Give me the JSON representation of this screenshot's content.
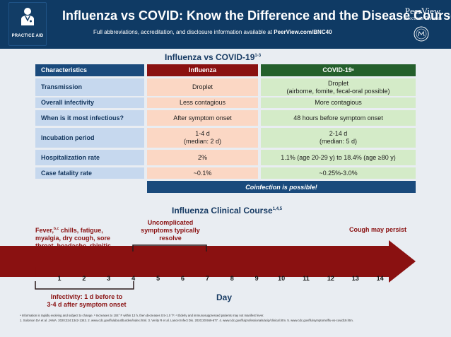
{
  "header": {
    "badge_text": "PRACTICE AID",
    "title": "Influenza vs COVID: Know the Difference and the Disease Course",
    "subtitle_prefix": "Full abbreviations, accreditation, and disclosure information available at ",
    "subtitle_link": "PeerView.com/BNC40",
    "brand_name": "PeerView",
    "brand_sub": "Infectious Diseases",
    "header_color": "#0f3a64"
  },
  "table": {
    "title": "Influenza vs COVID-19",
    "title_refs": "1-3",
    "headers": {
      "characteristics": "Characteristics",
      "influenza": "Influenza",
      "covid": "COVID-19",
      "covid_note": "a"
    },
    "rows": [
      {
        "label": "Transmission",
        "influenza": "Droplet",
        "covid_line1": "Droplet",
        "covid_line2": "(airborne, fomite, fecal-oral possible)"
      },
      {
        "label": "Overall infectivity",
        "influenza": "Less contagious",
        "covid_line1": "More contagious",
        "covid_line2": ""
      },
      {
        "label": "When is it most infectious?",
        "influenza": "After symptom onset",
        "covid_line1": "48 hours before symptom onset",
        "covid_line2": ""
      },
      {
        "label": "Incubation period",
        "influenza_line1": "1-4 d",
        "influenza_line2": "(median: 2 d)",
        "covid_line1": "2-14 d",
        "covid_line2": "(median: 5 d)"
      },
      {
        "label": "Hospitalization rate",
        "influenza": "2%",
        "covid_line1": "1.1% (age 20-29 y) to 18.4% (age ≥80 y)",
        "covid_line2": ""
      },
      {
        "label": "Case fatality rate",
        "influenza": "~0.1%",
        "covid_line1": "~0.25%-3.0%",
        "covid_line2": ""
      }
    ],
    "coinfection": "Coinfection is possible!",
    "colors": {
      "characteristics": "#1a4a7c",
      "influenza": "#8a1111",
      "covid": "#245f2c"
    }
  },
  "course": {
    "title": "Influenza Clinical Course",
    "title_refs": "1,4,5",
    "fever_word": "Fever,",
    "fever_refs": "b,c",
    "fever_rest_1": " chills, fatigue,",
    "fever_line2": "myalgia, dry cough, sore",
    "fever_line3": "throat, headache, rhinitis",
    "uncomplicated_line1": "Uncomplicated",
    "uncomplicated_line2": "symptoms typically",
    "uncomplicated_line3": "resolve",
    "cough": "Cough may persist",
    "infectivity_line1": "Infectivity: 1 d before to",
    "infectivity_line2": "3-4 d after symptom onset",
    "days": [
      "1",
      "2",
      "3",
      "4",
      "5",
      "6",
      "7",
      "8",
      "9",
      "10",
      "11",
      "12",
      "13",
      "14"
    ],
    "day_label": "Day"
  },
  "footer": {
    "line1": "ᵃ Information is rapidly evolving and subject to change. ᵇ Increases to 104° F within 12 h, then decreases 0.5-1.0 °F. ᶜ Elderly and immunosuppressed patients may not manifest fever.",
    "line2": "1. Solomon DA et al. JAMA. 2020;324:1342-1343. 2. www.cdc.gov/flu/about/burden/index.html. 3. Verity R et al. Lancet Infect Dis. 2020;20:669-677. 4. www.cdc.gov/flu/professionals/acip/clinical.htm. 5. www.cdc.gov/flu/symptoms/flu-vs-covid19.htm."
  }
}
